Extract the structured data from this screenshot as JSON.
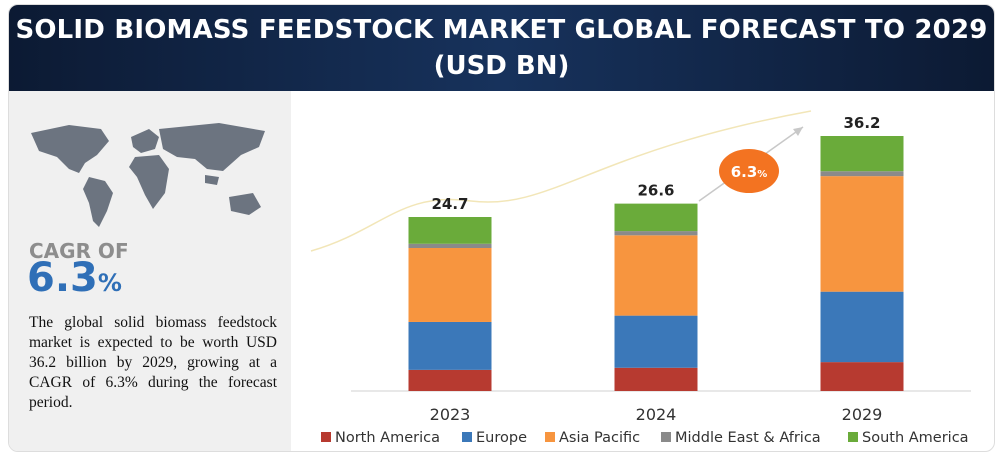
{
  "title": "SOLID BIOMASS FEEDSTOCK MARKET GLOBAL FORECAST TO 2029",
  "subtitle": "(USD BN)",
  "cagr": {
    "label": "CAGR OF",
    "value": "6.3",
    "unit": "%"
  },
  "description": "The global solid biomass feedstock market is expected to be worth USD 36.2 billion by 2029, growing at a CAGR of 6.3% during the forecast period.",
  "chart_data": {
    "type": "stacked_bar",
    "categories": [
      "2023",
      "2024",
      "2029"
    ],
    "totals": [
      24.7,
      26.6,
      36.2
    ],
    "series": [
      {
        "name": "North America",
        "color": "#b73a30",
        "values": [
          3.0,
          3.3,
          4.1
        ]
      },
      {
        "name": "Europe",
        "color": "#3b78b9",
        "values": [
          6.8,
          7.4,
          10.0
        ]
      },
      {
        "name": "Asia Pacific",
        "color": "#f7953f",
        "values": [
          10.5,
          11.4,
          16.4
        ]
      },
      {
        "name": "Middle East & Africa",
        "color": "#8a8a8a",
        "values": [
          0.6,
          0.6,
          0.7
        ]
      },
      {
        "name": "South America",
        "color": "#6aab3a",
        "values": [
          3.8,
          3.9,
          5.0
        ]
      }
    ]
  }
}
